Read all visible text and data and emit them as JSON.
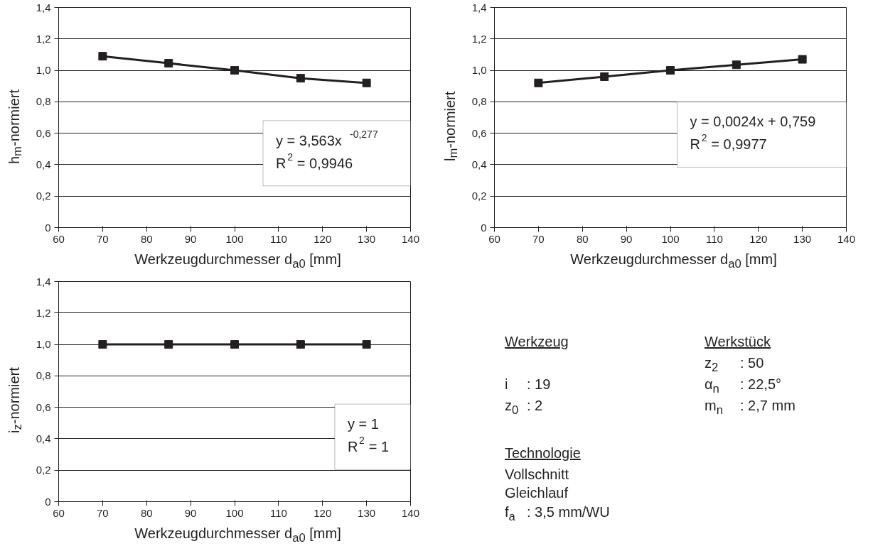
{
  "chart_data": [
    {
      "type": "line",
      "xlabel": "Werkzeugdurchmesser d$_{a0}$ [mm]",
      "ylabel": "h$_{m}$-normiert",
      "x": [
        70,
        85,
        100,
        115,
        130
      ],
      "series": [
        {
          "color": "#231f20",
          "values": [
            1.09,
            1.045,
            1.0,
            0.95,
            0.92
          ]
        }
      ],
      "xlim": [
        60,
        140
      ],
      "xticks": [
        60,
        70,
        80,
        90,
        100,
        110,
        120,
        130,
        140
      ],
      "ylim": [
        0,
        1.4
      ],
      "yticks": [
        0,
        {
          "value": 0.2,
          "label": "0,2"
        },
        {
          "value": 0.4,
          "label": "0,4"
        },
        {
          "value": 0.6,
          "label": "0,6"
        },
        {
          "value": 0.8,
          "label": "0,8"
        },
        {
          "value": 1.0,
          "label": "1,0"
        },
        {
          "value": 1.2,
          "label": "1,2"
        },
        {
          "value": 1.4,
          "label": "1,4"
        }
      ],
      "grid": "y",
      "marker": "square",
      "line_style": "solid",
      "annotations": [
        "y = 3,563x$^{-0,277}$",
        "R$^{2}$ = 0,9946"
      ]
    },
    {
      "type": "line",
      "xlabel": "Werkzeugdurchmesser d$_{a0}$ [mm]",
      "ylabel": "l$_{m}$-normiert",
      "x": [
        70,
        85,
        100,
        115,
        130
      ],
      "series": [
        {
          "color": "#231f20",
          "values": [
            0.92,
            0.96,
            1.0,
            1.035,
            1.07
          ]
        }
      ],
      "xlim": [
        60,
        140
      ],
      "xticks": [
        60,
        70,
        80,
        90,
        100,
        110,
        120,
        130,
        140
      ],
      "ylim": [
        0,
        1.4
      ],
      "yticks": [
        0,
        {
          "value": 0.2,
          "label": "0,2"
        },
        {
          "value": 0.4,
          "label": "0,4"
        },
        {
          "value": 0.6,
          "label": "0,6"
        },
        {
          "value": 0.8,
          "label": "0,8"
        },
        {
          "value": 1.0,
          "label": "1,0"
        },
        {
          "value": 1.2,
          "label": "1,2"
        },
        {
          "value": 1.4,
          "label": "1,4"
        }
      ],
      "grid": "y",
      "marker": "square",
      "line_style": "solid",
      "annotations": [
        "y = 0,0024x + 0,759",
        "R$^{2}$ = 0,9977"
      ]
    },
    {
      "type": "line",
      "xlabel": "Werkzeugdurchmesser d$_{a0}$ [mm]",
      "ylabel": "i$_{z}$-normiert",
      "x": [
        70,
        85,
        100,
        115,
        130
      ],
      "series": [
        {
          "color": "#231f20",
          "values": [
            1.0,
            1.0,
            1.0,
            1.0,
            1.0
          ]
        }
      ],
      "xlim": [
        60,
        140
      ],
      "xticks": [
        60,
        70,
        80,
        90,
        100,
        110,
        120,
        130,
        140
      ],
      "ylim": [
        0,
        1.4
      ],
      "yticks": [
        0,
        {
          "value": 0.2,
          "label": "0,2"
        },
        {
          "value": 0.4,
          "label": "0,4"
        },
        {
          "value": 0.6,
          "label": "0,6"
        },
        {
          "value": 0.8,
          "label": "0,8"
        },
        {
          "value": 1.0,
          "label": "1,0"
        },
        {
          "value": 1.2,
          "label": "1,2"
        },
        {
          "value": 1.4,
          "label": "1,4"
        }
      ],
      "grid": "y",
      "marker": "square",
      "line_style": "solid",
      "annotations": [
        "y = 1",
        "R$^{2}$ = 1"
      ]
    },
    {
      "type": "other",
      "annotations": [
        "Werkzeug",
        "Werkstück",
        "z$_{2}$",
        ": 50",
        "i",
        ": 19",
        "α$_{n}$",
        ": 22,5°",
        "z$_{0}$",
        ": 2",
        "m$_{n}$",
        ": 2,7 mm",
        "Technologie",
        "Vollschnitt",
        "Gleichlauf",
        "f$_{a}$",
        ": 3,5 mm/WU"
      ]
    }
  ]
}
